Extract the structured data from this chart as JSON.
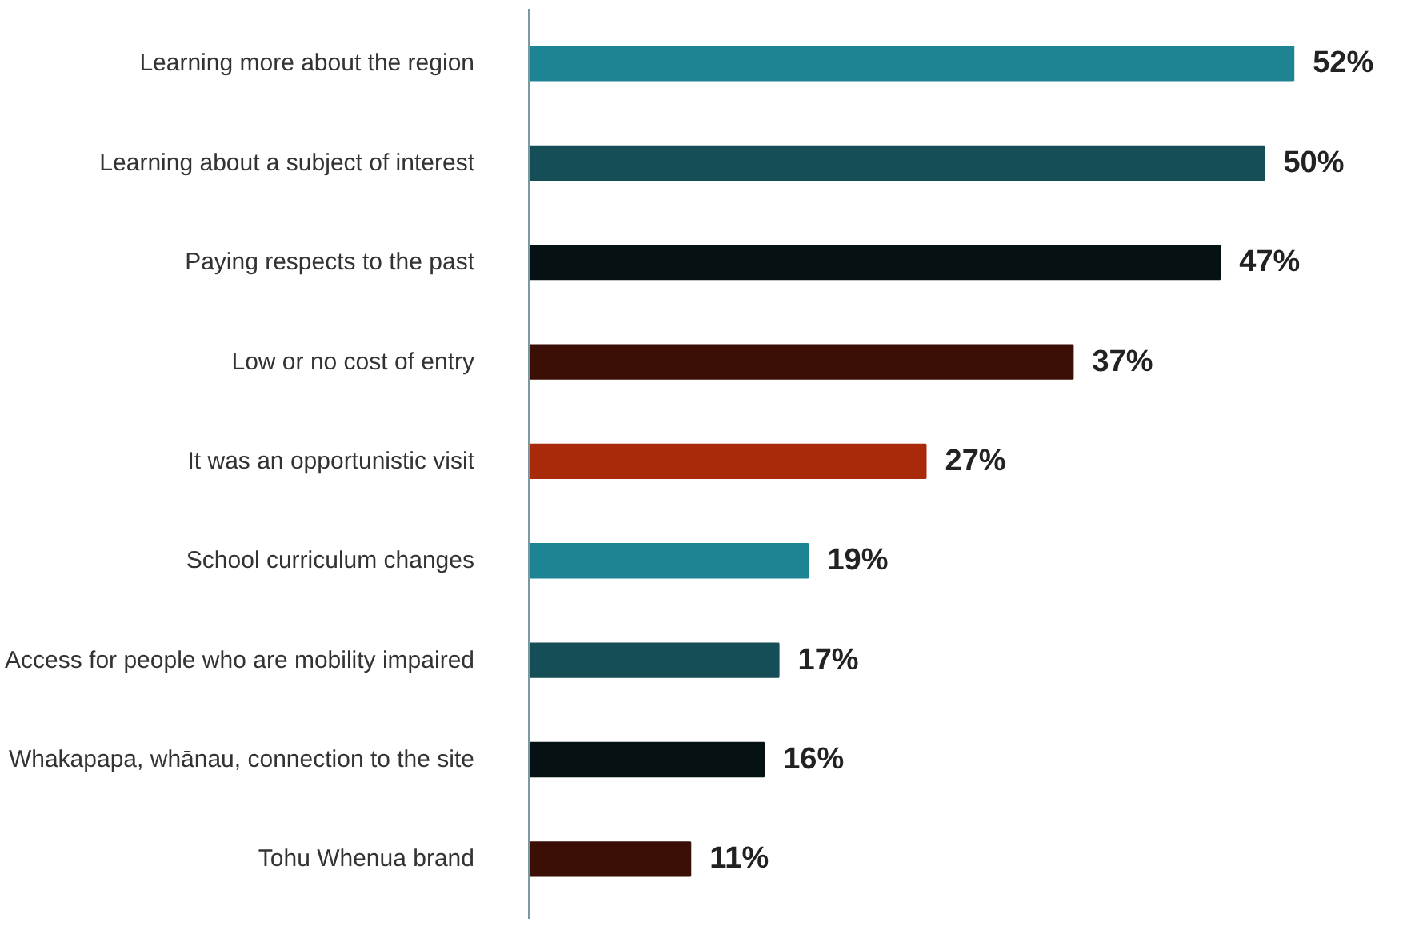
{
  "chart_data": {
    "type": "bar",
    "orientation": "horizontal",
    "categories": [
      "Learning more about the region",
      "Learning about a subject of interest",
      "Paying respects to the past",
      "Low or no cost of entry",
      "It was an opportunistic visit",
      "School curriculum changes",
      "Access for people who are mobility impaired",
      "Whakapapa, whānau, connection to the site",
      "Tohu Whenua brand"
    ],
    "values": [
      52,
      50,
      47,
      37,
      27,
      19,
      17,
      16,
      11
    ],
    "value_labels": [
      "52%",
      "50%",
      "47%",
      "37%",
      "27%",
      "19%",
      "17%",
      "16%",
      "11%"
    ],
    "colors": [
      "#1e8494",
      "#164e58",
      "#061114",
      "#3b0f05",
      "#a82a0a",
      "#1e8494",
      "#164e58",
      "#061114",
      "#3b0f05"
    ],
    "grid": false
  }
}
